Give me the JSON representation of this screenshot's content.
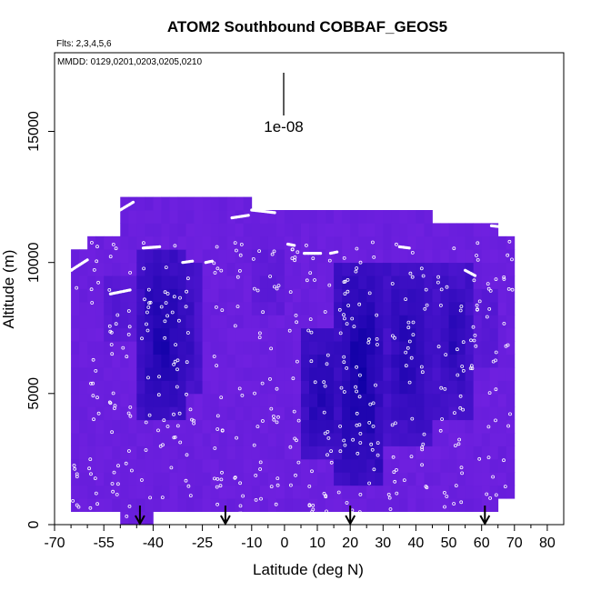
{
  "chart_data": {
    "type": "heatmap",
    "title": "ATOM2 Southbound COBBAF_GEOS5",
    "annotations": {
      "flights": "Flts: 2,3,4,5,6",
      "dates": "MMDD: 0129,0201,0203,0205,0210",
      "scale_label": "1e-08"
    },
    "xlabel": "Latitude (deg N)",
    "ylabel": "Altitude (m)",
    "xlim": [
      -70,
      85
    ],
    "ylim": [
      0,
      18000
    ],
    "x_ticks": [
      -70,
      -55,
      -40,
      -25,
      -10,
      0,
      10,
      20,
      30,
      40,
      50,
      60,
      70,
      80
    ],
    "x_tick_labels": [
      "-70",
      "-55",
      "-40",
      "-25",
      "-10",
      "0",
      "10",
      "20",
      "30",
      "40",
      "50",
      "60",
      "70",
      "80"
    ],
    "y_ticks": [
      0,
      5000,
      10000,
      15000
    ],
    "y_tick_labels": [
      "0",
      "5000",
      "10000",
      "15000"
    ],
    "arrows_latitude": [
      -44,
      -18,
      20,
      61
    ],
    "colors": {
      "background": "#ffffff",
      "low": "#7422e2",
      "mid": "#4d15cf",
      "high": "#0f00a6",
      "markers": "#ffffff"
    },
    "coverage": [
      {
        "lat": [
          -65,
          -60
        ],
        "alt": [
          600,
          10500
        ]
      },
      {
        "lat": [
          -60,
          -50
        ],
        "alt": [
          600,
          10800
        ]
      },
      {
        "lat": [
          -50,
          -40
        ],
        "alt": [
          200,
          12400
        ]
      },
      {
        "lat": [
          -40,
          -25
        ],
        "alt": [
          300,
          12400
        ]
      },
      {
        "lat": [
          -25,
          -10
        ],
        "alt": [
          300,
          12400
        ]
      },
      {
        "lat": [
          -10,
          0
        ],
        "alt": [
          300,
          12000
        ]
      },
      {
        "lat": [
          0,
          15
        ],
        "alt": [
          400,
          12000
        ]
      },
      {
        "lat": [
          15,
          30
        ],
        "alt": [
          400,
          11800
        ]
      },
      {
        "lat": [
          30,
          45
        ],
        "alt": [
          500,
          11800
        ]
      },
      {
        "lat": [
          45,
          58
        ],
        "alt": [
          500,
          11500
        ]
      },
      {
        "lat": [
          58,
          64
        ],
        "alt": [
          400,
          11500
        ]
      },
      {
        "lat": [
          64,
          71
        ],
        "alt": [
          800,
          11000
        ]
      }
    ],
    "high_regions": [
      {
        "lat": [
          -44,
          -30
        ],
        "alt": [
          4000,
          10300
        ],
        "level": 0.95
      },
      {
        "lat": [
          -36,
          -26
        ],
        "alt": [
          5000,
          10000
        ],
        "level": 0.8
      },
      {
        "lat": [
          5,
          18
        ],
        "alt": [
          2500,
          7500
        ],
        "level": 0.9
      },
      {
        "lat": [
          16,
          30
        ],
        "alt": [
          1500,
          10000
        ],
        "level": 1.0
      },
      {
        "lat": [
          30,
          45
        ],
        "alt": [
          3000,
          10200
        ],
        "level": 0.85
      },
      {
        "lat": [
          45,
          58
        ],
        "alt": [
          4000,
          10000
        ],
        "level": 0.8
      },
      {
        "lat": [
          -10,
          0
        ],
        "alt": [
          8000,
          10500
        ],
        "level": 0.35
      },
      {
        "lat": [
          -55,
          -45
        ],
        "alt": [
          7000,
          9500
        ],
        "level": 0.45
      },
      {
        "lat": [
          58,
          66
        ],
        "alt": [
          6000,
          9000
        ],
        "level": 0.45
      }
    ],
    "flight_tracks": [
      {
        "x": [
          -65,
          -60
        ],
        "y": [
          9700,
          10100
        ]
      },
      {
        "x": [
          -53,
          -47
        ],
        "y": [
          8800,
          8950
        ]
      },
      {
        "x": [
          -54,
          -46
        ],
        "y": [
          11700,
          12300
        ]
      },
      {
        "x": [
          -43,
          -38
        ],
        "y": [
          10550,
          10600
        ]
      },
      {
        "x": [
          -31,
          -28
        ],
        "y": [
          10000,
          10050
        ]
      },
      {
        "x": [
          -24,
          -22
        ],
        "y": [
          10000,
          10050
        ]
      },
      {
        "x": [
          -16,
          -11
        ],
        "y": [
          11700,
          11800
        ]
      },
      {
        "x": [
          -10,
          -3
        ],
        "y": [
          12000,
          11900
        ]
      },
      {
        "x": [
          1,
          3
        ],
        "y": [
          10700,
          10650
        ]
      },
      {
        "x": [
          6,
          11
        ],
        "y": [
          10350,
          10350
        ]
      },
      {
        "x": [
          14,
          16
        ],
        "y": [
          10350,
          10400
        ]
      },
      {
        "x": [
          35,
          38
        ],
        "y": [
          10600,
          10550
        ]
      },
      {
        "x": [
          55,
          58
        ],
        "y": [
          9700,
          9500
        ]
      },
      {
        "x": [
          63,
          70
        ],
        "y": [
          11400,
          11300
        ]
      }
    ]
  }
}
